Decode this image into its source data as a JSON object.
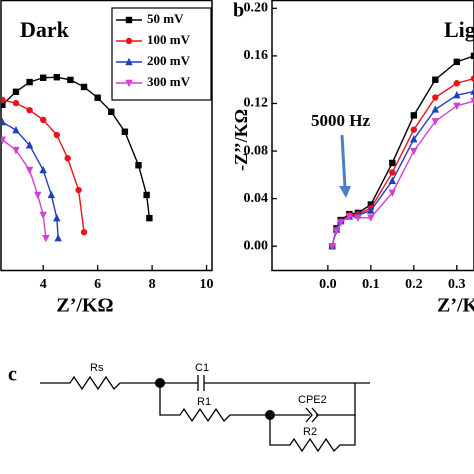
{
  "chart_data": [
    {
      "type": "line",
      "title": "Dark",
      "xlabel": "Z’/KΩ",
      "xlim": [
        2.45,
        10.2
      ],
      "ylim": [
        0,
        5
      ],
      "xticks": [
        4,
        6,
        8,
        10
      ],
      "legend": "upper right",
      "series": [
        {
          "name": "50 mV",
          "color": "#000000",
          "marker": "square",
          "x": [
            2.5,
            3,
            3.5,
            4,
            4.5,
            5,
            5.5,
            6,
            6.5,
            7,
            7.5,
            7.8,
            7.9
          ],
          "values": [
            3.06,
            3.3,
            3.48,
            3.56,
            3.57,
            3.52,
            3.39,
            3.19,
            2.93,
            2.56,
            1.94,
            1.39,
            0.96
          ]
        },
        {
          "name": "100 mV",
          "color": "#e8141c",
          "marker": "circle",
          "x": [
            2.5,
            3,
            3.5,
            4,
            4.5,
            4.9,
            5.3,
            5.5
          ],
          "values": [
            3.15,
            3.09,
            2.96,
            2.78,
            2.5,
            2.07,
            1.48,
            0.7
          ]
        },
        {
          "name": "200 mV",
          "color": "#1f3fbf",
          "marker": "triangle-up",
          "x": [
            2.5,
            3,
            3.5,
            4,
            4.3,
            4.5,
            4.55
          ],
          "values": [
            2.74,
            2.59,
            2.31,
            1.85,
            1.39,
            0.96,
            0.59
          ]
        },
        {
          "name": "300 mV",
          "color": "#d43fd4",
          "marker": "triangle-down",
          "x": [
            2.5,
            3,
            3.5,
            3.8,
            4.0,
            4.1
          ],
          "values": [
            2.41,
            2.22,
            1.85,
            1.39,
            1.02,
            0.59
          ]
        }
      ]
    },
    {
      "type": "line",
      "panel_label": "b",
      "title": "Light",
      "xlabel": "Z’/KΩ",
      "ylabel": "-Z’’/KΩ",
      "annotation": "5000 Hz",
      "xlim": [
        -0.13,
        0.34
      ],
      "ylim": [
        -0.02,
        0.207
      ],
      "xticks": [
        {
          "value": 0,
          "label": "0.0"
        },
        0.1,
        0.2,
        0.3
      ],
      "yticks": [
        {
          "value": 0,
          "label": "0.00"
        },
        0.04,
        0.08,
        0.12,
        0.16,
        {
          "value": 0.2,
          "label": "0.20"
        }
      ],
      "x": [
        0.01,
        0.02,
        0.03,
        0.05,
        0.07,
        0.1,
        0.15,
        0.2,
        0.25,
        0.3,
        0.34
      ],
      "series": [
        {
          "color": "#000000",
          "marker": "square",
          "values": [
            0.0,
            0.015,
            0.022,
            0.027,
            0.028,
            0.035,
            0.07,
            0.11,
            0.14,
            0.155,
            0.16
          ]
        },
        {
          "color": "#e8141c",
          "marker": "circle",
          "values": [
            0.0,
            0.014,
            0.021,
            0.026,
            0.027,
            0.032,
            0.062,
            0.098,
            0.125,
            0.137,
            0.141
          ]
        },
        {
          "color": "#1f3fbf",
          "marker": "triangle-up",
          "values": [
            0.0,
            0.014,
            0.021,
            0.025,
            0.026,
            0.03,
            0.055,
            0.09,
            0.115,
            0.127,
            0.13
          ]
        },
        {
          "color": "#d43fd4",
          "marker": "triangle-down",
          "values": [
            0.0,
            0.013,
            0.02,
            0.025,
            0.024,
            0.024,
            0.045,
            0.08,
            0.105,
            0.118,
            0.122
          ]
        }
      ]
    }
  ],
  "circuit": {
    "panel_label": "c",
    "labels": [
      "Rs",
      "C1",
      "R1",
      "CPE2",
      "R2"
    ]
  }
}
